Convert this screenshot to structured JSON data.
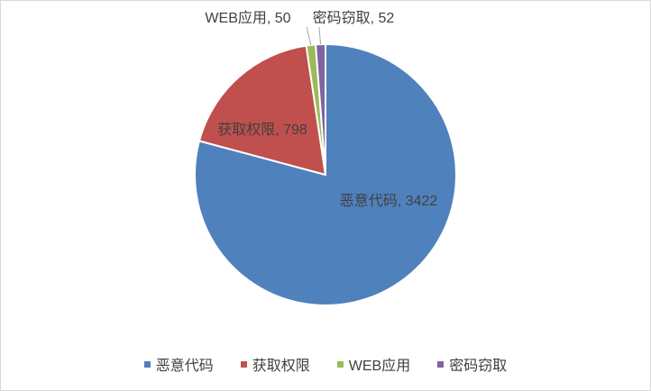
{
  "chart_data": {
    "type": "pie",
    "categories": [
      "恶意代码",
      "获取权限",
      "WEB应用",
      "密码窃取"
    ],
    "values": [
      3422,
      798,
      50,
      52
    ],
    "colors": [
      "#4F81BD",
      "#C0504D",
      "#9BBB59",
      "#8064A2"
    ],
    "legend_position": "bottom"
  }
}
